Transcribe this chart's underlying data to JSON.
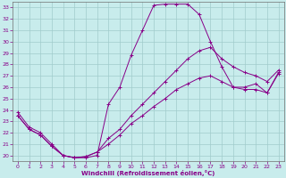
{
  "background_color": "#c8ecec",
  "line_color": "#880088",
  "grid_color": "#a0cccc",
  "xlabel": "Windchill (Refroidissement éolien,°C)",
  "xlim": [
    -0.5,
    23.5
  ],
  "ylim": [
    19.5,
    33.5
  ],
  "xticks": [
    0,
    1,
    2,
    3,
    4,
    5,
    6,
    7,
    8,
    9,
    10,
    11,
    12,
    13,
    14,
    15,
    16,
    17,
    18,
    19,
    20,
    21,
    22,
    23
  ],
  "yticks": [
    20,
    21,
    22,
    23,
    24,
    25,
    26,
    27,
    28,
    29,
    30,
    31,
    32,
    33
  ],
  "curve1_x": [
    0,
    1,
    2,
    3,
    4,
    5,
    6,
    7,
    8,
    9,
    10,
    11,
    12,
    13,
    14,
    15,
    16,
    17,
    18,
    19,
    20,
    21,
    22,
    23
  ],
  "curve1_y": [
    23.8,
    22.5,
    22.0,
    21.0,
    20.0,
    19.8,
    19.8,
    20.0,
    24.5,
    26.0,
    28.8,
    31.0,
    33.2,
    33.3,
    33.3,
    33.3,
    32.4,
    30.0,
    27.8,
    26.0,
    26.0,
    26.3,
    25.5,
    27.3
  ],
  "curve2_x": [
    0,
    1,
    2,
    3,
    4,
    5,
    6,
    7,
    8,
    9,
    10,
    11,
    12,
    13,
    14,
    15,
    16,
    17,
    18,
    19,
    20,
    21,
    22,
    23
  ],
  "curve2_y": [
    23.5,
    22.3,
    21.8,
    20.8,
    20.0,
    19.8,
    19.9,
    20.3,
    21.5,
    22.3,
    23.5,
    24.5,
    25.5,
    26.5,
    27.5,
    28.5,
    29.2,
    29.5,
    28.5,
    27.8,
    27.3,
    27.0,
    26.5,
    27.5
  ],
  "curve3_x": [
    0,
    1,
    2,
    3,
    4,
    5,
    6,
    7,
    8,
    9,
    10,
    11,
    12,
    13,
    14,
    15,
    16,
    17,
    18,
    19,
    20,
    21,
    22,
    23
  ],
  "curve3_y": [
    23.5,
    22.3,
    21.8,
    20.8,
    20.0,
    19.8,
    19.9,
    20.3,
    21.0,
    21.8,
    22.8,
    23.5,
    24.3,
    25.0,
    25.8,
    26.3,
    26.8,
    27.0,
    26.5,
    26.0,
    25.8,
    25.8,
    25.5,
    27.2
  ]
}
